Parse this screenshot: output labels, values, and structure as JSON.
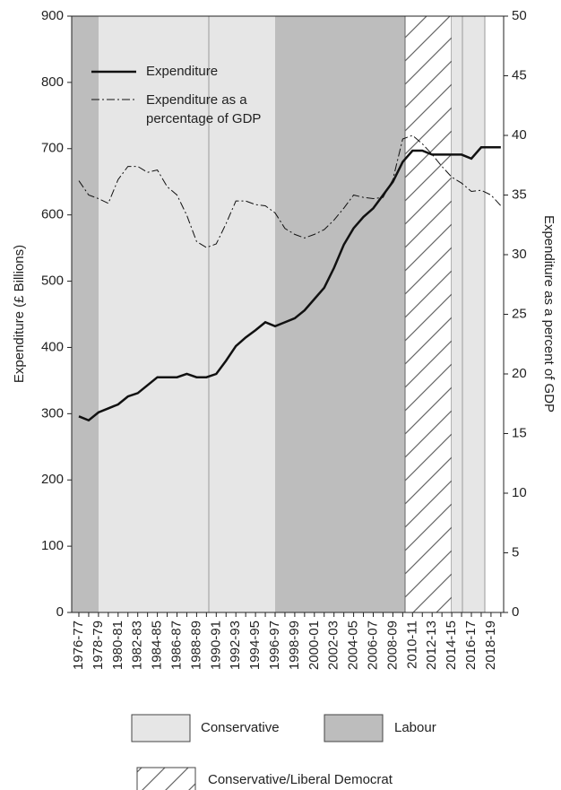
{
  "chart_data": {
    "type": "line",
    "categories": [
      "1976-77",
      null,
      "1978-79",
      null,
      "1980-81",
      null,
      "1982-83",
      null,
      "1984-85",
      null,
      "1986-87",
      null,
      "1988-89",
      null,
      "1990-91",
      null,
      "1992-93",
      null,
      "1994-95",
      null,
      "1996-97",
      null,
      "1998-99",
      null,
      "2000-01",
      null,
      "2002-03",
      null,
      "2004-05",
      null,
      "2006-07",
      null,
      "2008-09",
      null,
      "2010-11",
      null,
      "2012-13",
      null,
      "2014-15",
      null,
      "2016-17",
      null,
      "2018-19",
      null
    ],
    "series": [
      {
        "name": "Expenditure",
        "color": "#111111",
        "values": [
          296,
          290,
          302,
          308,
          314,
          326,
          331,
          343,
          355,
          355,
          355,
          360,
          355,
          355,
          360,
          380,
          402,
          415,
          426,
          438,
          432,
          438,
          444,
          456,
          473,
          490,
          520,
          555,
          580,
          597,
          610,
          630,
          650,
          680,
          697,
          697,
          691,
          691,
          691,
          691,
          685,
          702,
          702,
          702
        ]
      },
      {
        "name": "Expenditure as a percentage of GDP",
        "color": "#111111",
        "axis": "y2",
        "values": [
          36.2,
          35.0,
          34.7,
          34.3,
          36.3,
          37.4,
          37.4,
          36.9,
          37.1,
          35.7,
          35.0,
          33.3,
          31.1,
          30.6,
          30.9,
          32.6,
          34.5,
          34.5,
          34.2,
          34.1,
          33.5,
          32.2,
          31.7,
          31.4,
          31.7,
          32.1,
          32.9,
          33.9,
          35.0,
          34.8,
          34.7,
          34.8,
          36.3,
          39.7,
          40.0,
          39.3,
          38.4,
          37.4,
          36.5,
          36.0,
          35.3,
          35.4,
          35.0,
          34.1
        ]
      }
    ],
    "ylabel": "Expenditure (£ Billions)",
    "y2label": "Expenditure as a percent of GDP",
    "ylim": [
      0,
      900
    ],
    "yticks": [
      0,
      100,
      200,
      300,
      400,
      500,
      600,
      700,
      800,
      900
    ],
    "y2lim": [
      0,
      50
    ],
    "y2ticks": [
      0,
      5,
      10,
      15,
      20,
      25,
      30,
      35,
      40,
      45,
      50
    ],
    "period_legend": [
      "Conservative",
      "Labour",
      "Conservative/Liberal Democrat"
    ]
  }
}
